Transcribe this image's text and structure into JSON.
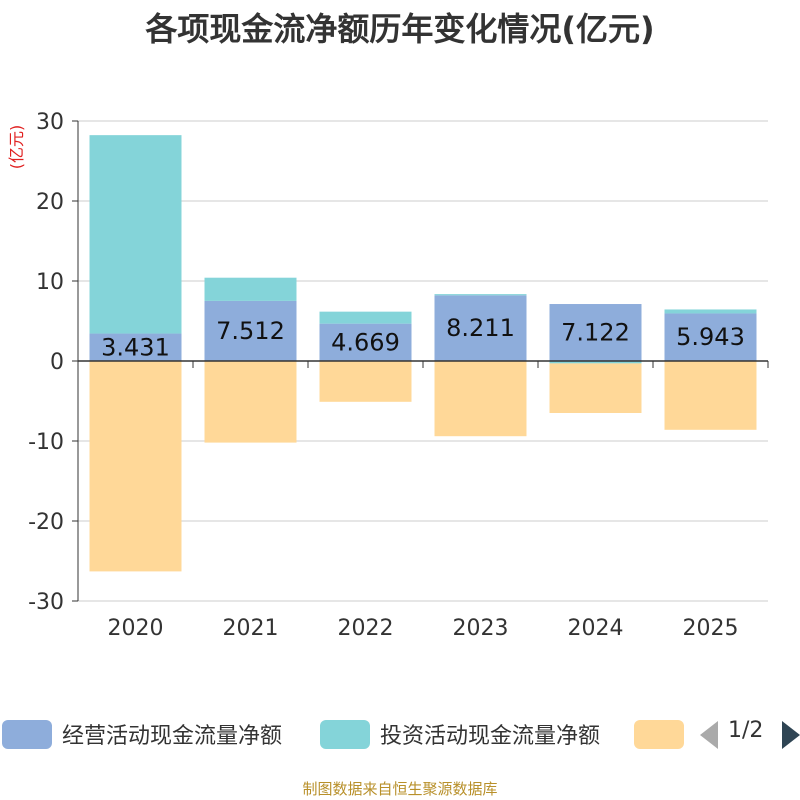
{
  "title": "各项现金流净额历年变化情况(亿元)",
  "source": "制图数据来自恒生聚源数据库",
  "legend": {
    "page": "1/2",
    "prev_icon": "triangle-left-icon",
    "next_icon": "triangle-right-icon"
  },
  "chart_data": {
    "type": "bar",
    "stacked": true,
    "title": "各项现金流净额历年变化情况(亿元)",
    "ylabel": "(亿元)",
    "ylim": [
      -30,
      30
    ],
    "yticks": [
      30,
      20,
      10,
      0,
      -10,
      -20,
      -30
    ],
    "categories": [
      "2020",
      "2021",
      "2022",
      "2023",
      "2024",
      "2025"
    ],
    "grid": true,
    "legend_position": "bottom",
    "series": [
      {
        "name": "经营活动现金流量净额",
        "color": "#8eaddb",
        "values": [
          3.431,
          7.512,
          4.669,
          8.211,
          7.122,
          5.943
        ],
        "labels": [
          "3.431",
          "7.512",
          "4.669",
          "8.211",
          "7.122",
          "5.943"
        ]
      },
      {
        "name": "投资活动现金流量净额",
        "color": "#84d4d9",
        "values": [
          24.8,
          2.9,
          1.5,
          0.15,
          -0.3,
          0.5
        ]
      },
      {
        "name": "",
        "color": "#ffd898",
        "values": [
          -26.3,
          -10.2,
          -5.1,
          -9.4,
          -6.2,
          -8.6
        ]
      }
    ]
  }
}
